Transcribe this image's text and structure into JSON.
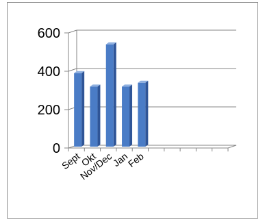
{
  "chart_data": {
    "type": "bar",
    "style": "3d-column",
    "categories": [
      "Sept",
      "Okt",
      "Nov/Dec",
      "Jan",
      "Feb",
      "",
      "",
      "",
      "",
      ""
    ],
    "values": [
      390,
      320,
      540,
      320,
      340,
      null,
      null,
      null,
      null,
      null
    ],
    "yticks": [
      0,
      200,
      400,
      600
    ],
    "ylim": [
      0,
      600
    ],
    "grid": true,
    "legend": "none",
    "colors": {
      "bar_front": "#4a7cc6",
      "bar_side": "#2f5597",
      "bar_top": "#8fb0e0",
      "grid": "#868686",
      "text": "#000000"
    }
  }
}
